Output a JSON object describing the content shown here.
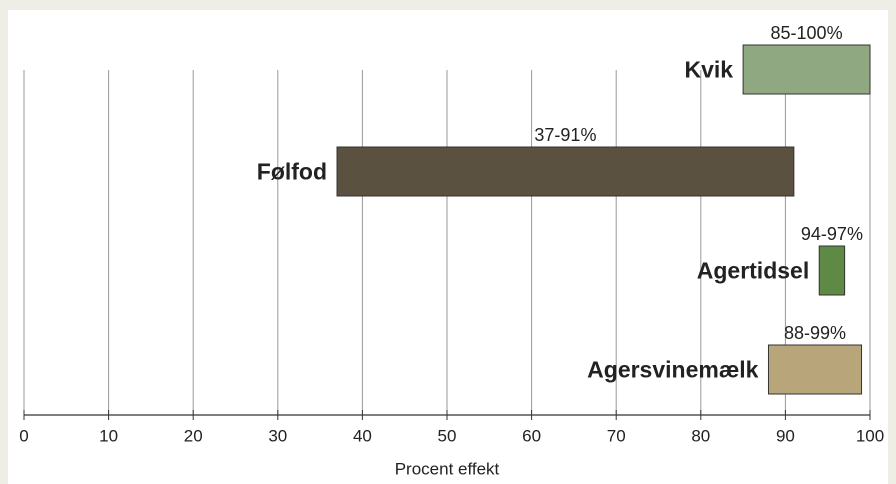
{
  "chart_data": {
    "type": "range-bar",
    "categories": [
      "Kvik",
      "Følfod",
      "Agertidsel",
      "Agersvinemælk"
    ],
    "ranges": [
      [
        85,
        100
      ],
      [
        37,
        91
      ],
      [
        94,
        97
      ],
      [
        88,
        99
      ]
    ],
    "value_labels": [
      "85-100%",
      "37-91%",
      "94-97%",
      "88-99%"
    ],
    "colors": [
      "#8fa882",
      "#5a5140",
      "#5f8a45",
      "#b9a57a"
    ],
    "xlabel": "Procent effekt",
    "xlim": [
      0,
      100
    ],
    "xticks": [
      0,
      10,
      20,
      30,
      40,
      50,
      60,
      70,
      80,
      90,
      100
    ],
    "grid": true
  }
}
